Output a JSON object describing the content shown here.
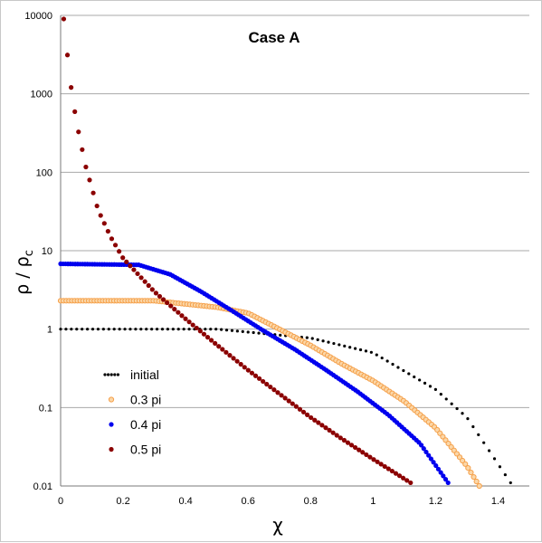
{
  "chart_data": {
    "type": "scatter",
    "title": "Case A",
    "xlabel": "χ",
    "ylabel": "ρ / ρ",
    "ylabel_sub": "c",
    "xscale": "linear",
    "yscale": "log",
    "xlim": [
      0,
      1.5
    ],
    "ylim": [
      0.01,
      10000
    ],
    "x_ticks": [
      "0",
      "0.2",
      "0.4",
      "0.6",
      "0.8",
      "1",
      "1.2",
      "1.4"
    ],
    "y_ticks": [
      "0.01",
      "0.1",
      "1",
      "10",
      "100",
      "1000",
      "10000"
    ],
    "grid": "horizontal",
    "legend_position": "bottom-left",
    "series": [
      {
        "name": "initial",
        "color": "#000000",
        "marker": "dot",
        "curve": "initial",
        "x_range": [
          0,
          1.44
        ],
        "points": 85,
        "anchors": [
          [
            0,
            1
          ],
          [
            0.5,
            1
          ],
          [
            0.8,
            0.77
          ],
          [
            1.0,
            0.5
          ],
          [
            1.2,
            0.17
          ],
          [
            1.3,
            0.075
          ],
          [
            1.44,
            0.011
          ]
        ]
      },
      {
        "name": "0.3 pi",
        "color": "#f5a04a",
        "marker": "ring",
        "curve": "pi03",
        "x_range": [
          0,
          1.34
        ],
        "points": 150,
        "anchors": [
          [
            0,
            2.3
          ],
          [
            0.3,
            2.3
          ],
          [
            0.5,
            1.9
          ],
          [
            0.6,
            1.6
          ],
          [
            0.7,
            1.0
          ],
          [
            0.8,
            0.62
          ],
          [
            0.9,
            0.36
          ],
          [
            1.0,
            0.22
          ],
          [
            1.1,
            0.12
          ],
          [
            1.2,
            0.055
          ],
          [
            1.3,
            0.018
          ],
          [
            1.34,
            0.01
          ]
        ]
      },
      {
        "name": "0.4 pi",
        "color": "#0000ee",
        "marker": "dot",
        "curve": "pi04",
        "x_range": [
          0,
          1.24
        ],
        "points": 160,
        "anchors": [
          [
            0,
            6.8
          ],
          [
            0.25,
            6.6
          ],
          [
            0.35,
            5.0
          ],
          [
            0.45,
            3.0
          ],
          [
            0.55,
            1.7
          ],
          [
            0.65,
            0.95
          ],
          [
            0.75,
            0.55
          ],
          [
            0.85,
            0.3
          ],
          [
            0.95,
            0.16
          ],
          [
            1.05,
            0.08
          ],
          [
            1.15,
            0.035
          ],
          [
            1.24,
            0.011
          ]
        ]
      },
      {
        "name": "0.5 pi",
        "color": "#8b0000",
        "marker": "dot",
        "curve": "pi05",
        "x_range": [
          0.01,
          1.12
        ],
        "points": 95,
        "anchors": [
          [
            0.01,
            9000
          ],
          [
            0.03,
            1500
          ],
          [
            0.05,
            450
          ],
          [
            0.08,
            120
          ],
          [
            0.12,
            33
          ],
          [
            0.16,
            15
          ],
          [
            0.2,
            8
          ],
          [
            0.3,
            3.0
          ],
          [
            0.4,
            1.35
          ],
          [
            0.5,
            0.63
          ],
          [
            0.6,
            0.3
          ],
          [
            0.7,
            0.15
          ],
          [
            0.8,
            0.075
          ],
          [
            0.9,
            0.04
          ],
          [
            1.0,
            0.022
          ],
          [
            1.12,
            0.011
          ]
        ]
      }
    ]
  }
}
